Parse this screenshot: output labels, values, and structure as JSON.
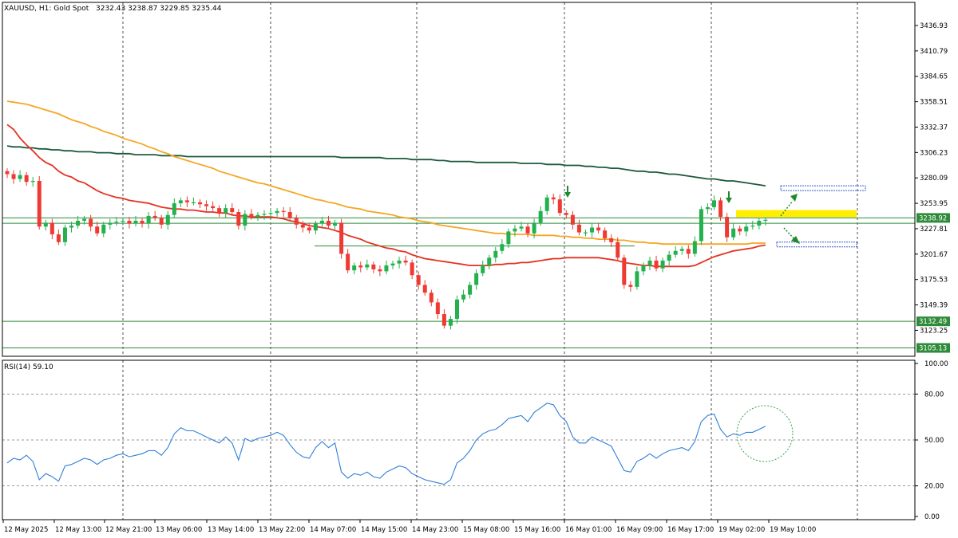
{
  "header": {
    "symbol": "XAUUSD, H1:  Gold Spot",
    "ohlc": "3232.43 3238.87 3229.85 3235.44"
  },
  "rsi_label": "RSI(14) 59.10",
  "colors": {
    "bull": "#26a69a",
    "bear": "#ef3a33",
    "bull_green": "#22b14c",
    "ma_fast": "#e53222",
    "ma_mid": "#f5a623",
    "ma_slow": "#1d5a3c",
    "rsi_line": "#2f7fd8",
    "level_line": "#2e8b3a",
    "highlight": "#ffee00",
    "arrow": "#1f8a2a",
    "box": "#3a5ccf"
  },
  "chart_data": [
    {
      "type": "candlestick",
      "price_ticks": [
        "3436.93",
        "3410.79",
        "3384.65",
        "3358.51",
        "3332.37",
        "3306.23",
        "3280.09",
        "3253.95",
        "3227.81",
        "3201.67",
        "3175.53",
        "3149.39",
        "3123.25"
      ],
      "time_ticks": [
        "12 May 2025",
        "12 May 13:00",
        "12 May 21:00",
        "13 May 06:00",
        "13 May 14:00",
        "13 May 22:00",
        "14 May 07:00",
        "14 May 15:00",
        "14 May 23:00",
        "15 May 08:00",
        "15 May 16:00",
        "16 May 01:00",
        "16 May 09:00",
        "16 May 17:00",
        "19 May 02:00",
        "19 May 10:00"
      ],
      "y_range": [
        3096,
        3460
      ],
      "current_price": "3238.92",
      "levels": [
        {
          "label": "3132.49",
          "value": 3132.49
        },
        {
          "label": "3105.13",
          "value": 3105.13
        }
      ],
      "close": [
        3284,
        3279,
        3283,
        3276,
        3277,
        3230,
        3234,
        3222,
        3214,
        3229,
        3231,
        3236,
        3238,
        3230,
        3223,
        3232,
        3234,
        3235,
        3236,
        3233,
        3236,
        3233,
        3241,
        3239,
        3232,
        3242,
        3254,
        3257,
        3255,
        3255,
        3253,
        3251,
        3249,
        3244,
        3249,
        3245,
        3231,
        3243,
        3240,
        3242,
        3243,
        3244,
        3246,
        3245,
        3239,
        3232,
        3229,
        3226,
        3233,
        3236,
        3231,
        3234,
        3202,
        3185,
        3190,
        3188,
        3191,
        3186,
        3184,
        3190,
        3192,
        3195,
        3193,
        3180,
        3170,
        3162,
        3152,
        3140,
        3128,
        3135,
        3155,
        3160,
        3170,
        3182,
        3190,
        3198,
        3205,
        3212,
        3225,
        3228,
        3230,
        3223,
        3234,
        3246,
        3260,
        3258,
        3244,
        3242,
        3232,
        3224,
        3224,
        3229,
        3226,
        3218,
        3214,
        3198,
        3170,
        3168,
        3184,
        3190,
        3195,
        3187,
        3195,
        3201,
        3205,
        3207,
        3202,
        3215,
        3248,
        3250,
        3257,
        3240,
        3219,
        3228,
        3225,
        3230,
        3231,
        3236,
        3237
      ],
      "ma_fast": [
        3335,
        3330,
        3321,
        3314,
        3308,
        3301,
        3296,
        3293,
        3287,
        3283,
        3281,
        3277,
        3275,
        3271,
        3267,
        3264,
        3262,
        3260,
        3259,
        3257,
        3256,
        3255,
        3254,
        3252,
        3250,
        3249,
        3248,
        3248,
        3247,
        3247,
        3246,
        3245,
        3245,
        3244,
        3244,
        3242,
        3241,
        3241,
        3240,
        3240,
        3240,
        3240,
        3239,
        3238,
        3236,
        3235,
        3233,
        3231,
        3230,
        3229,
        3228,
        3226,
        3224,
        3221,
        3219,
        3217,
        3214,
        3212,
        3210,
        3208,
        3207,
        3205,
        3204,
        3201,
        3199,
        3197,
        3196,
        3195,
        3194,
        3193,
        3192,
        3191,
        3190,
        3190,
        3190,
        3190,
        3191,
        3191,
        3192,
        3192,
        3193,
        3193,
        3194,
        3195,
        3196,
        3197,
        3197,
        3198,
        3198,
        3198,
        3198,
        3198,
        3198,
        3197,
        3196,
        3195,
        3193,
        3192,
        3191,
        3190,
        3190,
        3189,
        3189,
        3189,
        3189,
        3189,
        3189,
        3190,
        3193,
        3196,
        3199,
        3201,
        3203,
        3205,
        3206,
        3207,
        3208,
        3210,
        3211
      ],
      "ma_mid": [
        3359,
        3358,
        3357,
        3356,
        3354,
        3352,
        3350,
        3348,
        3346,
        3343,
        3340,
        3338,
        3336,
        3333,
        3331,
        3328,
        3326,
        3324,
        3321,
        3319,
        3317,
        3315,
        3312,
        3310,
        3307,
        3305,
        3302,
        3300,
        3298,
        3296,
        3294,
        3292,
        3290,
        3287,
        3285,
        3283,
        3281,
        3279,
        3277,
        3275,
        3274,
        3272,
        3270,
        3268,
        3266,
        3264,
        3262,
        3260,
        3258,
        3257,
        3255,
        3254,
        3252,
        3250,
        3249,
        3248,
        3246,
        3245,
        3244,
        3243,
        3242,
        3240,
        3239,
        3238,
        3236,
        3235,
        3234,
        3232,
        3231,
        3230,
        3229,
        3228,
        3227,
        3226,
        3225,
        3224,
        3223,
        3223,
        3222,
        3222,
        3222,
        3222,
        3221,
        3221,
        3221,
        3221,
        3220,
        3220,
        3219,
        3219,
        3218,
        3218,
        3217,
        3217,
        3217,
        3216,
        3216,
        3215,
        3214,
        3214,
        3213,
        3213,
        3212,
        3212,
        3212,
        3212,
        3212,
        3212,
        3212,
        3212,
        3212,
        3212,
        3212,
        3212,
        3212,
        3212,
        3213,
        3213,
        3213
      ],
      "ma_slow": [
        3313,
        3312,
        3312,
        3311,
        3311,
        3310,
        3310,
        3309,
        3309,
        3308,
        3308,
        3307,
        3307,
        3307,
        3306,
        3306,
        3306,
        3305,
        3305,
        3305,
        3304,
        3304,
        3304,
        3304,
        3303,
        3303,
        3303,
        3303,
        3302,
        3302,
        3302,
        3302,
        3302,
        3302,
        3302,
        3302,
        3302,
        3302,
        3302,
        3302,
        3302,
        3302,
        3302,
        3302,
        3302,
        3302,
        3302,
        3302,
        3302,
        3302,
        3302,
        3302,
        3301,
        3301,
        3301,
        3301,
        3301,
        3301,
        3301,
        3300,
        3300,
        3300,
        3300,
        3299,
        3299,
        3299,
        3299,
        3298,
        3298,
        3297,
        3297,
        3297,
        3297,
        3296,
        3296,
        3296,
        3296,
        3296,
        3296,
        3296,
        3295,
        3295,
        3295,
        3295,
        3294,
        3294,
        3294,
        3293,
        3293,
        3293,
        3292,
        3292,
        3291,
        3291,
        3290,
        3290,
        3289,
        3288,
        3287,
        3287,
        3286,
        3286,
        3285,
        3284,
        3284,
        3283,
        3282,
        3281,
        3280,
        3279,
        3279,
        3278,
        3277,
        3277,
        3276,
        3275,
        3274,
        3273,
        3272
      ]
    },
    {
      "type": "line",
      "name": "RSI(14)",
      "y_ticks": [
        "100.00",
        "80.00",
        "50.00",
        "20.00",
        "0.00"
      ],
      "y_range": [
        0,
        100
      ],
      "values": [
        35,
        38,
        37,
        40,
        36,
        24,
        28,
        26,
        23,
        33,
        34,
        36,
        38,
        37,
        34,
        37,
        38,
        40,
        41,
        39,
        40,
        41,
        43,
        43,
        40,
        45,
        54,
        58,
        56,
        56,
        54,
        52,
        50,
        48,
        52,
        48,
        37,
        51,
        49,
        51,
        52,
        53,
        55,
        53,
        47,
        42,
        39,
        38,
        45,
        49,
        45,
        48,
        29,
        25,
        28,
        27,
        29,
        26,
        25,
        29,
        31,
        33,
        32,
        28,
        26,
        24,
        23,
        22,
        21,
        24,
        35,
        38,
        43,
        50,
        54,
        56,
        57,
        60,
        64,
        65,
        66,
        62,
        68,
        71,
        74,
        73,
        66,
        62,
        52,
        48,
        48,
        52,
        50,
        48,
        46,
        38,
        30,
        29,
        36,
        38,
        41,
        38,
        41,
        43,
        44,
        45,
        43,
        49,
        62,
        66,
        67,
        57,
        52,
        54,
        53,
        55,
        55,
        57,
        59
      ]
    }
  ],
  "annotations": {
    "arrows_down": [
      "down-arrow-1",
      "down-arrow-2"
    ],
    "arrows_projection": [
      "up-arrow",
      "down-arrow"
    ]
  }
}
